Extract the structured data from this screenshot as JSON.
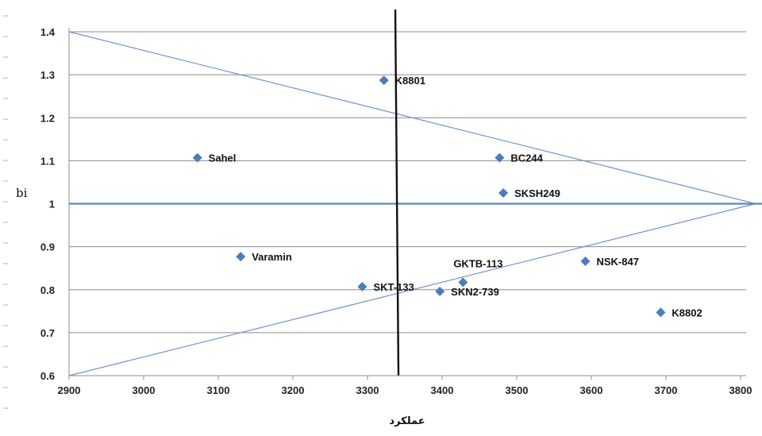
{
  "chart_data": {
    "type": "scatter",
    "title": "",
    "xlabel": "عملکرد",
    "ylabel": "bi",
    "xlim": [
      2900,
      3800
    ],
    "ylim": [
      0.6,
      1.4
    ],
    "x_ticks": [
      "2900",
      "3000",
      "3100",
      "3200",
      "3300",
      "3400",
      "3500",
      "3600",
      "3700",
      "3800"
    ],
    "y_ticks": [
      "0.6",
      "0.7",
      "0.8",
      "0.9",
      "1",
      "1.1",
      "1.2",
      "1.3",
      "1.4"
    ],
    "grid": true,
    "marker_color": "#4a7ebb",
    "points": [
      {
        "label": "K8801",
        "x": 3322,
        "y": 1.287
      },
      {
        "label": "Sahel",
        "x": 3072,
        "y": 1.107
      },
      {
        "label": "BC244",
        "x": 3477,
        "y": 1.107
      },
      {
        "label": "SKSH249",
        "x": 3482,
        "y": 1.025
      },
      {
        "label": "Varamin",
        "x": 3130,
        "y": 0.877
      },
      {
        "label": "GKTB-113",
        "x": 3428,
        "y": 0.817
      },
      {
        "label": "NSK-847",
        "x": 3592,
        "y": 0.866
      },
      {
        "label": "SKT-133",
        "x": 3293,
        "y": 0.807
      },
      {
        "label": "SKN2-739",
        "x": 3397,
        "y": 0.796
      },
      {
        "label": "K8802",
        "x": 3693,
        "y": 0.747
      }
    ],
    "reference_lines": {
      "mean_yield": 3340,
      "bi_one": 1.0,
      "upper_line": [
        [
          2900,
          1.4
        ],
        [
          3820,
          1.0
        ]
      ],
      "lower_line": [
        [
          2900,
          0.6
        ],
        [
          3820,
          1.0
        ]
      ]
    }
  }
}
